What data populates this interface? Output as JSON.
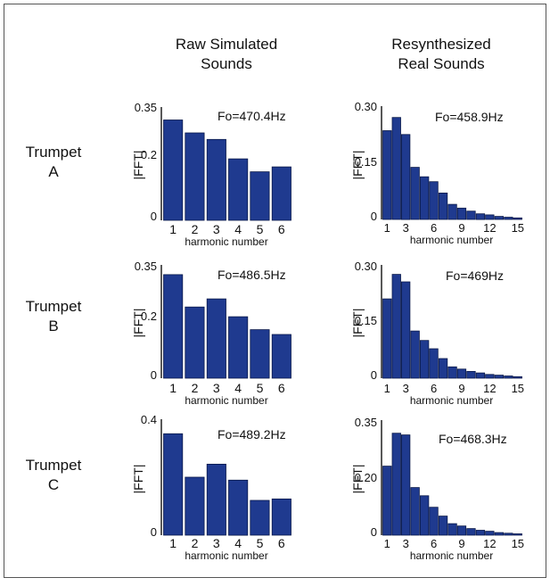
{
  "colors": {
    "bar": "#1f3a8f",
    "bar_stroke": "#0b1a4a",
    "axis": "#111111",
    "frame": "#555555"
  },
  "column_headers": [
    [
      "Raw Simulated",
      "Sounds"
    ],
    [
      "Resynthesized",
      "Real Sounds"
    ]
  ],
  "row_labels": [
    [
      "Trumpet",
      "A"
    ],
    [
      "Trumpet",
      "B"
    ],
    [
      "Trumpet",
      "C"
    ]
  ],
  "chart_data": [
    {
      "type": "bar",
      "panel": "raw-A",
      "annotation": "Fo=470.4Hz",
      "ylabel": "|FFT|",
      "xlabel": "harmonic number",
      "categories": [
        "1",
        "2",
        "3",
        "4",
        "5",
        "6"
      ],
      "xtick_labels": [
        "1",
        "2",
        "3",
        "4",
        "5",
        "6"
      ],
      "values": [
        0.31,
        0.27,
        0.25,
        0.19,
        0.15,
        0.165
      ],
      "ylim": [
        0,
        0.35
      ],
      "yticks": [
        "0.35",
        "0.2",
        "0"
      ]
    },
    {
      "type": "bar",
      "panel": "real-A",
      "annotation": "Fo=458.9Hz",
      "ylabel": "|FFT|",
      "xlabel": "harmonic number",
      "categories": [
        "1",
        "2",
        "3",
        "4",
        "5",
        "6",
        "7",
        "8",
        "9",
        "10",
        "11",
        "12",
        "13",
        "14",
        "15"
      ],
      "xtick_labels": [
        "1",
        "3",
        "6",
        "9",
        "12",
        "15"
      ],
      "values": [
        0.235,
        0.27,
        0.225,
        0.138,
        0.113,
        0.1,
        0.07,
        0.04,
        0.03,
        0.022,
        0.015,
        0.012,
        0.008,
        0.006,
        0.004
      ],
      "ylim": [
        0,
        0.3
      ],
      "yticks": [
        "0.30",
        "0.15",
        "0"
      ]
    },
    {
      "type": "bar",
      "panel": "raw-B",
      "annotation": "Fo=486.5Hz",
      "ylabel": "|FFT|",
      "xlabel": "harmonic number",
      "categories": [
        "1",
        "2",
        "3",
        "4",
        "5",
        "6"
      ],
      "xtick_labels": [
        "1",
        "2",
        "3",
        "4",
        "5",
        "6"
      ],
      "values": [
        0.32,
        0.22,
        0.245,
        0.19,
        0.15,
        0.135
      ],
      "ylim": [
        0,
        0.35
      ],
      "yticks": [
        "0.35",
        "0.2",
        "0"
      ]
    },
    {
      "type": "bar",
      "panel": "real-B",
      "annotation": "Fo=469Hz",
      "ylabel": "|FFT|",
      "xlabel": "harmonic number",
      "categories": [
        "1",
        "2",
        "3",
        "4",
        "5",
        "6",
        "7",
        "8",
        "9",
        "10",
        "11",
        "12",
        "13",
        "14",
        "15"
      ],
      "xtick_labels": [
        "1",
        "3",
        "6",
        "9",
        "12",
        "15"
      ],
      "values": [
        0.21,
        0.275,
        0.255,
        0.125,
        0.1,
        0.078,
        0.052,
        0.03,
        0.024,
        0.018,
        0.014,
        0.01,
        0.008,
        0.006,
        0.004
      ],
      "ylim": [
        0,
        0.3
      ],
      "yticks": [
        "0.30",
        "0.15",
        "0"
      ]
    },
    {
      "type": "bar",
      "panel": "raw-C",
      "annotation": "Fo=489.2Hz",
      "ylabel": "|FFT|",
      "xlabel": "harmonic number",
      "categories": [
        "1",
        "2",
        "3",
        "4",
        "5",
        "6"
      ],
      "xtick_labels": [
        "1",
        "2",
        "3",
        "4",
        "5",
        "6"
      ],
      "values": [
        0.35,
        0.2,
        0.245,
        0.19,
        0.12,
        0.125
      ],
      "ylim": [
        0,
        0.4
      ],
      "yticks": [
        "0.4",
        "0"
      ]
    },
    {
      "type": "bar",
      "panel": "real-C",
      "annotation": "Fo=468.3Hz",
      "ylabel": "|FFT|",
      "xlabel": "harmonic number",
      "categories": [
        "1",
        "2",
        "3",
        "4",
        "5",
        "6",
        "7",
        "8",
        "9",
        "10",
        "11",
        "12",
        "13",
        "14",
        "15"
      ],
      "xtick_labels": [
        "1",
        "3",
        "6",
        "9",
        "12",
        "15"
      ],
      "values": [
        0.21,
        0.31,
        0.305,
        0.145,
        0.12,
        0.085,
        0.058,
        0.035,
        0.028,
        0.02,
        0.015,
        0.012,
        0.008,
        0.006,
        0.004
      ],
      "ylim": [
        0,
        0.35
      ],
      "yticks": [
        "0.35",
        "0.20",
        "0"
      ]
    }
  ]
}
